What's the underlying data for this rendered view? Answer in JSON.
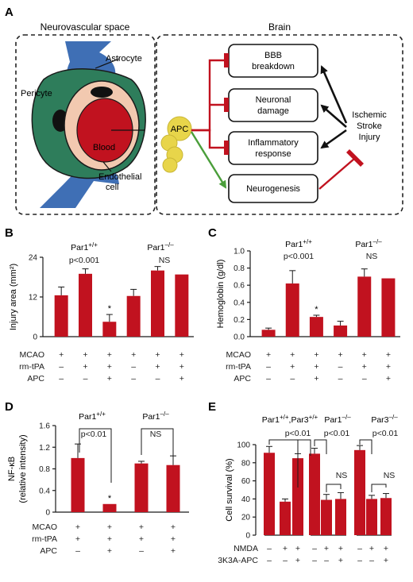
{
  "panels": {
    "A": {
      "label": "A",
      "left_box_title": "Neurovascular space",
      "right_box_title": "Brain",
      "cells": [
        "Astrocyte",
        "Pericyte",
        "Blood",
        "Endothelial",
        "cell"
      ],
      "apc_label": "APC",
      "outcomes": [
        {
          "lines": [
            "BBB",
            "breakdown"
          ],
          "effect": "inhibit"
        },
        {
          "lines": [
            "Neuronal",
            "damage"
          ],
          "effect": "inhibit"
        },
        {
          "lines": [
            "Inflammatory",
            "response"
          ],
          "effect": "inhibit"
        },
        {
          "lines": [
            "Neurogenesis"
          ],
          "effect": "promote"
        }
      ],
      "injury_lines": [
        "Ischemic",
        "Stroke",
        "Injury"
      ],
      "colors": {
        "inhibit": "#c1121f",
        "promote": "#4a9e3a",
        "astrocyte": "#3f6fb5",
        "pericyte": "#2e7d5b",
        "endothelium": "#f2c9b0",
        "blood": "#c1121f",
        "apc": "#e8d54a"
      }
    }
  },
  "chart_data": [
    {
      "panel": "B",
      "type": "bar",
      "title": "",
      "xlabel": "",
      "ylabel": "Injury area (mm²)",
      "ylim": [
        0,
        24
      ],
      "yticks": [
        "0",
        "12",
        "24"
      ],
      "values": [
        12.5,
        19.0,
        4.5,
        12.3,
        20.0,
        18.8
      ],
      "errors": [
        2.5,
        1.5,
        2.2,
        2.0,
        1.2,
        0
      ],
      "star_bar_index": 2,
      "groups": [
        {
          "label": "Par1",
          "sup": "+/+",
          "stat": "p<0.001"
        },
        {
          "label": "Par1",
          "sup": "–/–",
          "stat": "NS"
        }
      ],
      "conditions": [
        {
          "name": "MCAO",
          "signs": [
            "+",
            "+",
            "+",
            "+",
            "+",
            "+"
          ]
        },
        {
          "name": "rm-tPA",
          "signs": [
            "–",
            "+",
            "+",
            "–",
            "+",
            "+"
          ]
        },
        {
          "name": "APC",
          "signs": [
            "–",
            "–",
            "+",
            "–",
            "–",
            "+"
          ]
        }
      ],
      "grid": false
    },
    {
      "panel": "C",
      "type": "bar",
      "title": "",
      "xlabel": "",
      "ylabel": "Hemoglobin (g/dl)",
      "ylim": [
        0,
        1.0
      ],
      "yticks": [
        "0.0",
        "0.2",
        "0.4",
        "0.6",
        "0.8",
        "1.0"
      ],
      "values": [
        0.08,
        0.62,
        0.23,
        0.13,
        0.7,
        0.68
      ],
      "errors": [
        0.02,
        0.15,
        0.02,
        0.05,
        0.09,
        0
      ],
      "star_bar_index": 2,
      "groups": [
        {
          "label": "Par1",
          "sup": "+/+",
          "stat": "p<0.001"
        },
        {
          "label": "Par1",
          "sup": "–/–",
          "stat": "NS"
        }
      ],
      "conditions": [
        {
          "name": "MCAO",
          "signs": [
            "+",
            "+",
            "+",
            "+",
            "+",
            "+"
          ]
        },
        {
          "name": "rm-tPA",
          "signs": [
            "–",
            "+",
            "+",
            "–",
            "+",
            "+"
          ]
        },
        {
          "name": "APC",
          "signs": [
            "–",
            "–",
            "+",
            "–",
            "–",
            "+"
          ]
        }
      ],
      "grid": false
    },
    {
      "panel": "D",
      "type": "bar",
      "title": "",
      "xlabel": "",
      "ylabel": "NF-κB",
      "ylabel2": "(relative intensity)",
      "ylim": [
        0,
        1.6
      ],
      "yticks": [
        "0",
        "0.4",
        "0.8",
        "1.2",
        "1.6"
      ],
      "values": [
        1.0,
        0.15,
        0.9,
        0.87
      ],
      "errors": [
        0.26,
        0,
        0.04,
        0.17
      ],
      "star_bar_index": 1,
      "groups": [
        {
          "label": "Par1",
          "sup": "+/+",
          "stat": "p<0.01"
        },
        {
          "label": "Par1",
          "sup": "–/–",
          "stat": "NS"
        }
      ],
      "conditions": [
        {
          "name": "MCAO",
          "signs": [
            "+",
            "+",
            "+",
            "+"
          ]
        },
        {
          "name": "rm-tPA",
          "signs": [
            "+",
            "+",
            "+",
            "+"
          ]
        },
        {
          "name": "APC",
          "signs": [
            "–",
            "+",
            "–",
            "+"
          ]
        }
      ],
      "grid": false
    },
    {
      "panel": "E",
      "type": "bar",
      "title": "",
      "xlabel": "",
      "ylabel": "Cell survival (%)",
      "ylim": [
        0,
        100
      ],
      "yticks": [
        "0",
        "20",
        "40",
        "60",
        "80",
        "100"
      ],
      "values": [
        91,
        37,
        85,
        90,
        39,
        40,
        94,
        40,
        41
      ],
      "errors": [
        7,
        3,
        5,
        6,
        6,
        7,
        5,
        4,
        5
      ],
      "groups": [
        {
          "label": "Par1",
          "sup": "+/+",
          "label2": ",Par3",
          "sup2": "+/+",
          "stat": "p<0.01"
        },
        {
          "label": "Par1",
          "sup": "–/–",
          "stat": "p<0.01",
          "stat2": "NS"
        },
        {
          "label": "Par3",
          "sup": "–/–",
          "stat": "p<0.01",
          "stat2": "NS"
        }
      ],
      "conditions": [
        {
          "name": "NMDA",
          "signs": [
            "–",
            "+",
            "+",
            "–",
            "+",
            "+",
            "–",
            "+",
            "+"
          ]
        },
        {
          "name": "3K3A-APC",
          "signs": [
            "–",
            "–",
            "+",
            "–",
            "–",
            "+",
            "–",
            "–",
            "+"
          ]
        }
      ],
      "grid": false
    }
  ]
}
